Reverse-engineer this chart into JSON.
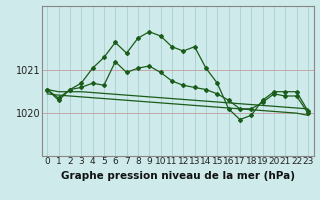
{
  "title": "Graphe pression niveau de la mer (hPa)",
  "background_color": "#ceeaea",
  "grid_color": "#aacfcf",
  "line_color": "#1a5c1a",
  "x_labels": [
    "0",
    "1",
    "2",
    "3",
    "4",
    "5",
    "6",
    "7",
    "8",
    "9",
    "10",
    "11",
    "12",
    "13",
    "14",
    "15",
    "16",
    "17",
    "18",
    "19",
    "20",
    "21",
    "22",
    "23"
  ],
  "yticks": [
    1020,
    1021
  ],
  "ylim": [
    1019.0,
    1022.5
  ],
  "series_jagged": [
    1020.55,
    1020.3,
    1020.55,
    1020.7,
    1021.05,
    1021.3,
    1021.65,
    1021.4,
    1021.75,
    1021.9,
    1021.8,
    1021.55,
    1021.45,
    1021.55,
    1021.05,
    1020.7,
    1020.1,
    1019.85,
    1019.95,
    1020.3,
    1020.5,
    1020.5,
    1020.5,
    1020.05
  ],
  "series_medium": [
    1020.55,
    1020.35,
    1020.55,
    1020.6,
    1020.7,
    1020.65,
    1021.2,
    1020.95,
    1021.05,
    1021.1,
    1020.95,
    1020.75,
    1020.65,
    1020.6,
    1020.55,
    1020.45,
    1020.3,
    1020.1,
    1020.1,
    1020.25,
    1020.45,
    1020.4,
    1020.4,
    1020.0
  ],
  "series_trend1": [
    1020.55,
    1020.5,
    1020.5,
    1020.5,
    1020.48,
    1020.46,
    1020.44,
    1020.42,
    1020.4,
    1020.38,
    1020.36,
    1020.34,
    1020.32,
    1020.3,
    1020.28,
    1020.26,
    1020.24,
    1020.22,
    1020.2,
    1020.18,
    1020.16,
    1020.14,
    1020.12,
    1020.1
  ],
  "series_trend2": [
    1020.45,
    1020.42,
    1020.4,
    1020.38,
    1020.36,
    1020.34,
    1020.32,
    1020.3,
    1020.28,
    1020.26,
    1020.24,
    1020.22,
    1020.2,
    1020.18,
    1020.16,
    1020.14,
    1020.12,
    1020.1,
    1020.08,
    1020.06,
    1020.04,
    1020.02,
    1020.0,
    1019.95
  ],
  "xlabel_fontsize": 6.5,
  "ylabel_fontsize": 7,
  "title_fontsize": 7.5
}
